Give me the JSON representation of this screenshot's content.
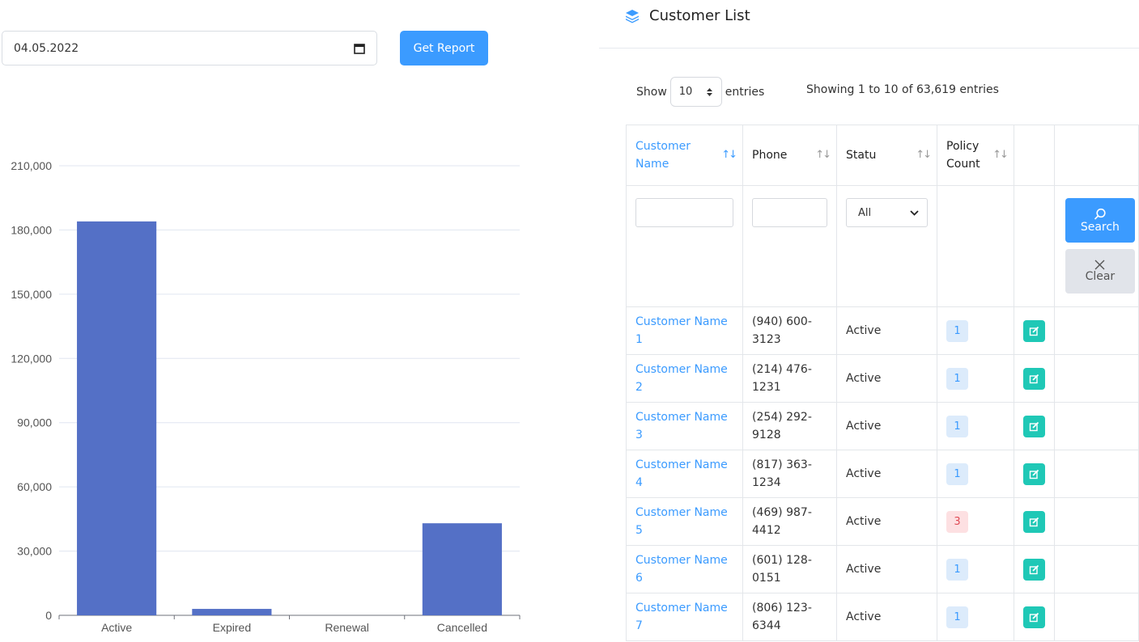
{
  "report": {
    "date_value": "04.05.2022",
    "get_report_label": "Get Report"
  },
  "chart_data": {
    "type": "bar",
    "categories": [
      "Active",
      "Expired",
      "Renewal",
      "Cancelled"
    ],
    "values": [
      184000,
      3000,
      0,
      43000
    ],
    "ylim": [
      0,
      210000
    ],
    "yticks": [
      0,
      30000,
      60000,
      90000,
      120000,
      150000,
      180000,
      210000
    ],
    "ytick_labels": [
      "0",
      "30,000",
      "60,000",
      "90,000",
      "120,000",
      "150,000",
      "180,000",
      "210,000"
    ],
    "bar_color": "#5470c6",
    "grid": true
  },
  "customers": {
    "title": "Customer List",
    "title_icon": "layers-icon",
    "show_label": "Show",
    "page_length": "10",
    "entries_label": "entries",
    "info_text": "Showing 1 to 10 of 63,619 entries",
    "columns": [
      "Customer Name",
      "Phone",
      "Statu",
      "Policy Count",
      "",
      ""
    ],
    "status_filter": "All",
    "search_label": "Search",
    "clear_label": "Clear",
    "rows": [
      {
        "name": "Customer Name 1",
        "phone": "(940) 600-3123",
        "status": "Active",
        "count": "1"
      },
      {
        "name": "Customer Name 2",
        "phone": "(214) 476-1231",
        "status": "Active",
        "count": "1"
      },
      {
        "name": "Customer Name 3",
        "phone": "(254) 292-9128",
        "status": "Active",
        "count": "1"
      },
      {
        "name": "Customer Name 4",
        "phone": "(817) 363-1234",
        "status": "Active",
        "count": "1"
      },
      {
        "name": "Customer Name 5",
        "phone": "(469) 987-4412",
        "status": "Active",
        "count": "3"
      },
      {
        "name": "Customer Name 6",
        "phone": "(601) 128-0151",
        "status": "Active",
        "count": "1"
      },
      {
        "name": "Customer Name 7",
        "phone": "(806) 123-6344",
        "status": "Active",
        "count": "1"
      }
    ]
  },
  "colors": {
    "accent": "#3b9bff",
    "edit_button": "#1fc8b6",
    "badge_high": "#e04b55"
  }
}
